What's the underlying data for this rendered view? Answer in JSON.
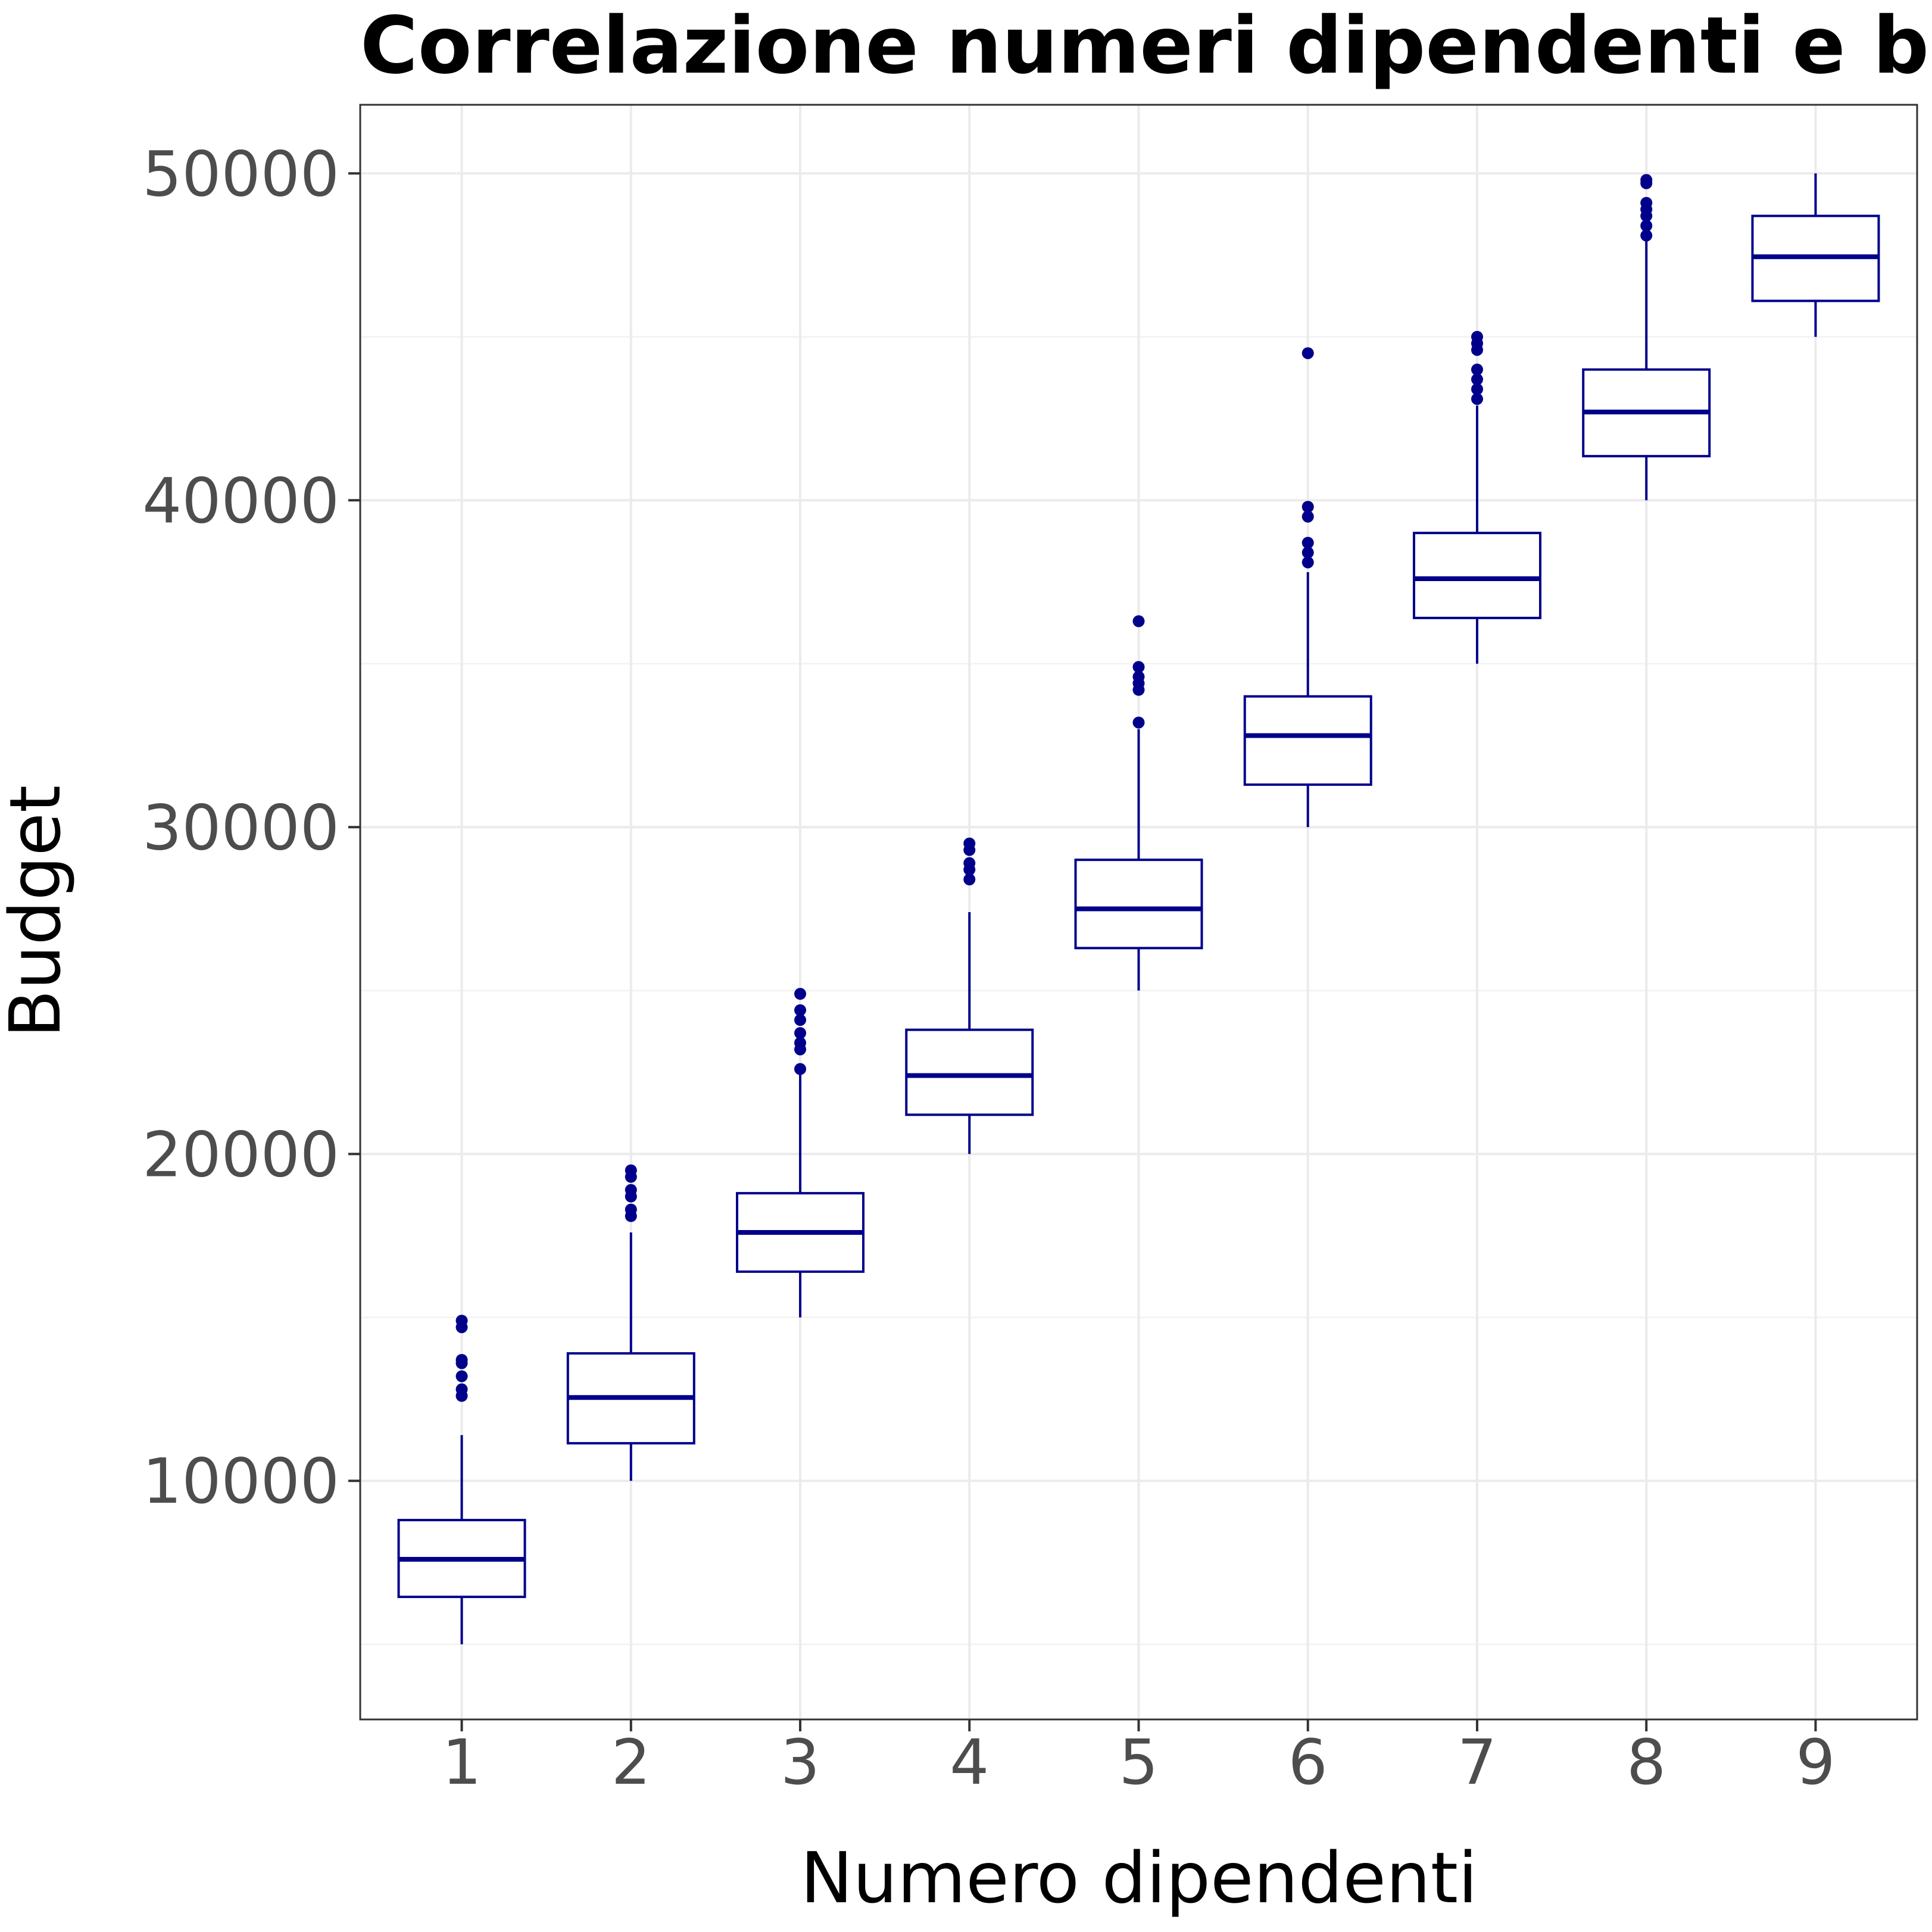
{
  "chart_data": {
    "type": "boxplot",
    "title": "Correlazione numeri dipendenti e b",
    "xlabel": "Numero dipendenti",
    "ylabel": "Budget",
    "ylim": [
      2700,
      52100
    ],
    "xlim": [
      0.4,
      9.6
    ],
    "y_ticks": [
      10000,
      20000,
      30000,
      40000,
      50000
    ],
    "y_tick_labels": [
      "10000",
      "20000",
      "30000",
      "40000",
      "50000"
    ],
    "y_minor_ticks": [
      5000,
      15000,
      25000,
      35000,
      45000
    ],
    "x_ticks": [
      1,
      2,
      3,
      4,
      5,
      6,
      7,
      8,
      9
    ],
    "x_tick_labels": [
      "1",
      "2",
      "3",
      "4",
      "5",
      "6",
      "7",
      "8",
      "9"
    ],
    "grid": true,
    "legend": "none",
    "colors": {
      "box": "#00008b",
      "background": "#ffffff",
      "grid": "#ebebeb",
      "panel_border": "#333333"
    },
    "series": [
      {
        "x": 1,
        "whisker_low": 5000,
        "q1": 6450,
        "median": 7600,
        "q3": 8800,
        "whisker_high": 11400,
        "outliers": [
          12600,
          12800,
          13200,
          13600,
          13700,
          14700,
          14900
        ]
      },
      {
        "x": 2,
        "whisker_low": 10000,
        "q1": 11150,
        "median": 12550,
        "q3": 13900,
        "whisker_high": 17600,
        "outliers": [
          18100,
          18300,
          18700,
          18900,
          19300,
          19500
        ]
      },
      {
        "x": 3,
        "whisker_low": 15000,
        "q1": 16400,
        "median": 17600,
        "q3": 18800,
        "whisker_high": 22600,
        "outliers": [
          22600,
          23200,
          23400,
          23700,
          24100,
          24400,
          24900
        ]
      },
      {
        "x": 4,
        "whisker_low": 20000,
        "q1": 21200,
        "median": 22400,
        "q3": 23800,
        "whisker_high": 27400,
        "outliers": [
          28400,
          28700,
          28900,
          29300,
          29500
        ]
      },
      {
        "x": 5,
        "whisker_low": 25000,
        "q1": 26300,
        "median": 27500,
        "q3": 29000,
        "whisker_high": 33000,
        "outliers": [
          33200,
          34200,
          34400,
          34600,
          34900,
          36300
        ]
      },
      {
        "x": 6,
        "whisker_low": 30000,
        "q1": 31300,
        "median": 32800,
        "q3": 34000,
        "whisker_high": 37800,
        "outliers": [
          38100,
          38400,
          38700,
          39500,
          39800,
          44500
        ]
      },
      {
        "x": 7,
        "whisker_low": 35000,
        "q1": 36400,
        "median": 37600,
        "q3": 39000,
        "whisker_high": 42900,
        "outliers": [
          43100,
          43400,
          43700,
          44000,
          44600,
          44800,
          45000
        ]
      },
      {
        "x": 8,
        "whisker_low": 40000,
        "q1": 41350,
        "median": 42700,
        "q3": 44000,
        "whisker_high": 48000,
        "outliers": [
          48100,
          48400,
          48700,
          48900,
          49100,
          49700,
          49800
        ]
      },
      {
        "x": 9,
        "whisker_low": 45000,
        "q1": 46100,
        "median": 47450,
        "q3": 48700,
        "whisker_high": 50000,
        "outliers": []
      }
    ]
  }
}
